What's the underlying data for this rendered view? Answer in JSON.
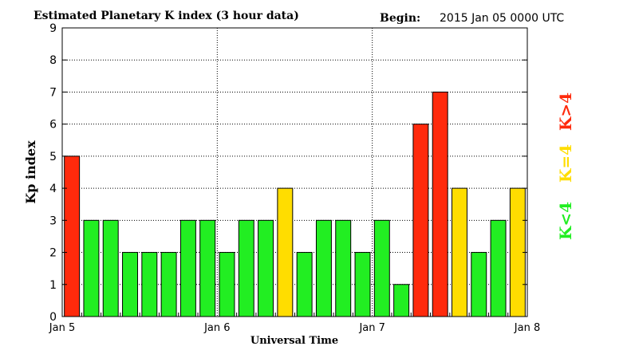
{
  "chart_data": {
    "type": "bar",
    "title": "Estimated Planetary K index (3 hour data)",
    "begin_label": "Begin:",
    "begin_value": "2015 Jan 05 0000 UTC",
    "xlabel": "Universal Time",
    "ylabel": "Kp index",
    "ylim": [
      0,
      9
    ],
    "yticks": [
      "0",
      "1",
      "2",
      "3",
      "4",
      "5",
      "6",
      "7",
      "8",
      "9"
    ],
    "xticks": [
      "Jan 5",
      "Jan 6",
      "Jan 7",
      "Jan 8"
    ],
    "grid": true,
    "values": [
      5,
      3,
      3,
      2,
      2,
      2,
      3,
      3,
      2,
      3,
      3,
      4,
      2,
      3,
      3,
      2,
      3,
      1,
      6,
      7,
      4,
      2,
      3,
      4
    ],
    "legend": [
      {
        "label": "K<4",
        "color": "#22ee22"
      },
      {
        "label": "K=4",
        "color": "#ffdd00"
      },
      {
        "label": "K>4",
        "color": "#ff2a0c"
      }
    ],
    "colors": {
      "low": "#22ee22",
      "mid": "#ffdd00",
      "high": "#ff2a0c"
    }
  }
}
